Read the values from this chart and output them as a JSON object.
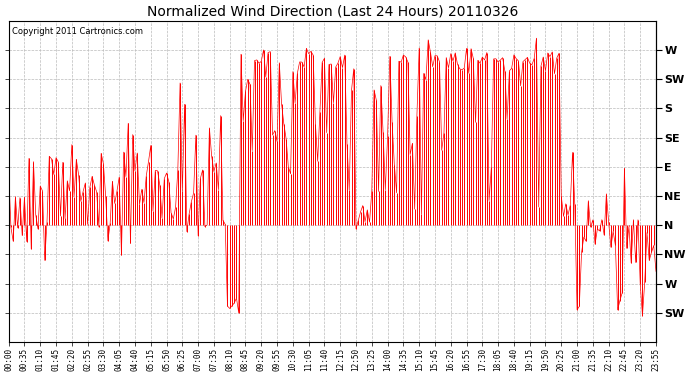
{
  "title": "Normalized Wind Direction (Last 24 Hours) 20110326",
  "copyright_text": "Copyright 2011 Cartronics.com",
  "line_color": "#ff0000",
  "bg_color": "#ffffff",
  "grid_color": "#bbbbbb",
  "ytick_labels_right": [
    "W",
    "SW",
    "S",
    "SE",
    "E",
    "NE",
    "N",
    "NW",
    "W",
    "SW"
  ],
  "ytick_values": [
    360,
    315,
    270,
    225,
    180,
    135,
    90,
    45,
    0,
    -45
  ],
  "ylim": [
    -90,
    405
  ],
  "time_labels": [
    "00:00",
    "00:35",
    "01:10",
    "01:45",
    "02:20",
    "02:55",
    "03:30",
    "04:05",
    "04:40",
    "05:15",
    "05:50",
    "06:25",
    "07:00",
    "07:35",
    "08:10",
    "08:45",
    "09:20",
    "09:55",
    "10:30",
    "11:05",
    "11:40",
    "12:15",
    "12:50",
    "13:25",
    "14:00",
    "14:35",
    "15:10",
    "15:45",
    "16:20",
    "16:55",
    "17:30",
    "18:05",
    "18:40",
    "19:15",
    "19:50",
    "20:25",
    "21:00",
    "21:35",
    "22:10",
    "22:45",
    "23:20",
    "23:55"
  ],
  "n_points": 288,
  "seed": 42,
  "figwidth": 6.9,
  "figheight": 3.75,
  "dpi": 100
}
